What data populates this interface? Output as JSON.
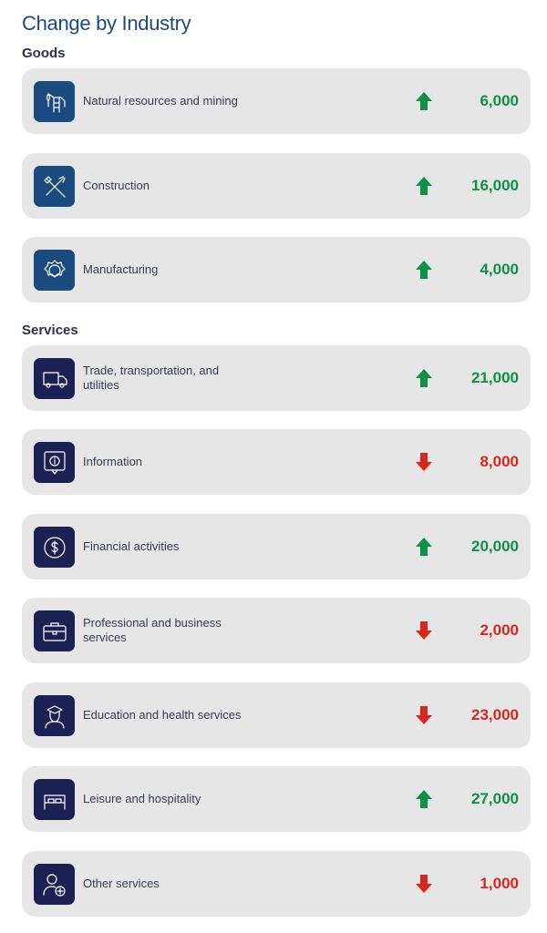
{
  "title": "Change by Industry",
  "colors": {
    "up": "#0e9146",
    "down": "#d9261c",
    "goods_icon": "#1a4a7e",
    "services_icon": "#1b2152"
  },
  "sections": [
    {
      "label": "Goods",
      "items": [
        {
          "label": "Natural resources and mining",
          "icon": "oil-pump-icon",
          "direction": "up",
          "value": "6,000"
        },
        {
          "label": "Construction",
          "icon": "tools-icon",
          "direction": "up",
          "value": "16,000"
        },
        {
          "label": "Manufacturing",
          "icon": "gear-icon",
          "direction": "up",
          "value": "4,000"
        }
      ]
    },
    {
      "label": "Services",
      "items": [
        {
          "label": "Trade, transportation, and utilities",
          "icon": "truck-icon",
          "direction": "up",
          "value": "21,000"
        },
        {
          "label": "Information",
          "icon": "info-icon",
          "direction": "down",
          "value": "8,000"
        },
        {
          "label": "Financial activities",
          "icon": "dollar-icon",
          "direction": "up",
          "value": "20,000"
        },
        {
          "label": "Professional and business services",
          "icon": "briefcase-icon",
          "direction": "down",
          "value": "2,000"
        },
        {
          "label": "Education and health services",
          "icon": "graduate-icon",
          "direction": "down",
          "value": "23,000"
        },
        {
          "label": "Leisure and hospitality",
          "icon": "bed-icon",
          "direction": "up",
          "value": "27,000"
        },
        {
          "label": "Other services",
          "icon": "person-plus-icon",
          "direction": "down",
          "value": "1,000"
        }
      ]
    }
  ]
}
